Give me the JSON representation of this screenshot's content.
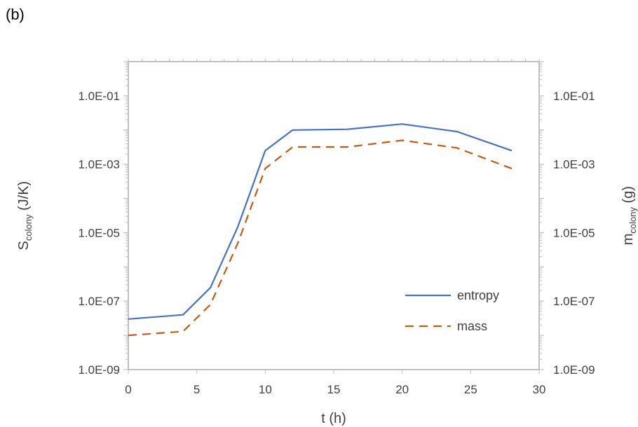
{
  "panel_label": "(b)",
  "chart_data": {
    "type": "line",
    "xlabel": "t (h)",
    "ylabel_left": {
      "main": "S",
      "sub": "colony",
      "unit": " (J/K)"
    },
    "ylabel_right": {
      "main": "m",
      "sub": "colony",
      "unit": " (g)"
    },
    "xlim": [
      0,
      30
    ],
    "ylim": [
      1e-09,
      1
    ],
    "y_scale": "log",
    "x_ticks": [
      0,
      5,
      10,
      15,
      20,
      25,
      30
    ],
    "y_ticks": [
      1e-09,
      1e-07,
      1e-05,
      0.001,
      0.1
    ],
    "y_tick_labels": [
      "1.0E-09",
      "1.0E-07",
      "1.0E-05",
      "1.0E-03",
      "1.0E-01"
    ],
    "legend_position": "lower-right",
    "grid": false,
    "series": [
      {
        "name": "entropy",
        "color": "#4472c4",
        "style": "solid",
        "x": [
          0,
          4,
          6,
          8,
          10,
          12,
          16,
          20,
          24,
          28
        ],
        "y": [
          3e-08,
          4e-08,
          2.5e-07,
          1.5e-05,
          0.0025,
          0.01,
          0.0105,
          0.015,
          0.009,
          0.0025
        ]
      },
      {
        "name": "mass",
        "color": "#c55a11",
        "style": "dashed",
        "x": [
          0,
          4,
          6,
          8,
          10,
          12,
          16,
          20,
          24,
          28
        ],
        "y": [
          1e-08,
          1.3e-08,
          8e-08,
          5e-06,
          0.00075,
          0.0032,
          0.0032,
          0.005,
          0.003,
          0.00075
        ]
      }
    ]
  }
}
